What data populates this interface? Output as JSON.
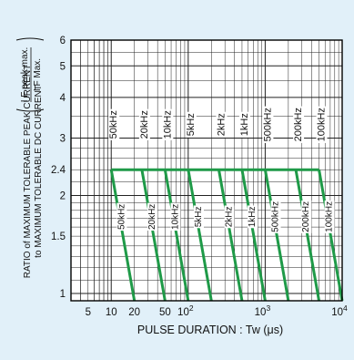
{
  "chart_data": {
    "type": "line",
    "xlabel": "PULSE  DURATION : Tw  (μs)",
    "ylabel_line1": "RATIO of MAXIMUM TOLERABLE PEAK CURRENT",
    "ylabel_line2": "to MAXIMUM TOLERABLE DC CURRENT",
    "ylabel_fraction": {
      "numerator": "I F peak max.",
      "denominator": "I F Max."
    },
    "x_scale": "log",
    "y_scale": "log",
    "xlim": [
      3,
      10000
    ],
    "ylim": [
      0.95,
      6
    ],
    "grid": true,
    "x_ticks": [
      {
        "value": 5,
        "label": "5"
      },
      {
        "value": 10,
        "label": "10"
      },
      {
        "value": 20,
        "label": "20"
      },
      {
        "value": 50,
        "label": "50"
      },
      {
        "value": 100,
        "label": "10",
        "exp": "2"
      },
      {
        "value": 1000,
        "label": "10",
        "exp": "3"
      },
      {
        "value": 10000,
        "label": "10",
        "exp": "4"
      }
    ],
    "y_ticks": [
      {
        "value": 1,
        "label": "1"
      },
      {
        "value": 1.5,
        "label": "1.5"
      },
      {
        "value": 2,
        "label": "2"
      },
      {
        "value": 2.4,
        "label": "2.4"
      },
      {
        "value": 3,
        "label": "3"
      },
      {
        "value": 4,
        "label": "4"
      },
      {
        "value": 5,
        "label": "5"
      },
      {
        "value": 6,
        "label": "6"
      }
    ],
    "plateau": {
      "y": 2.4,
      "x_start": 10,
      "x_end": 5000
    },
    "series": [
      {
        "name": "50kHz",
        "drop_start_x": 10,
        "drop_end_x": 20,
        "upper_label": "50kHz",
        "lower_label": "50kHz"
      },
      {
        "name": "20kHz",
        "drop_start_x": 25,
        "drop_end_x": 50,
        "upper_label": "20kHz",
        "lower_label": "20kHz"
      },
      {
        "name": "10kHz",
        "drop_start_x": 50,
        "drop_end_x": 100,
        "upper_label": "10kHz",
        "lower_label": "10kHz"
      },
      {
        "name": "5kHz",
        "drop_start_x": 100,
        "drop_end_x": 200,
        "upper_label": "5kHz",
        "lower_label": "5kHz"
      },
      {
        "name": "2kHz",
        "drop_start_x": 250,
        "drop_end_x": 500,
        "upper_label": "2kHz",
        "lower_label": "2kHz"
      },
      {
        "name": "1kHz",
        "drop_start_x": 500,
        "drop_end_x": 1000,
        "upper_label": "1kHz",
        "lower_label": "1kHz"
      },
      {
        "name": "500kHz",
        "drop_start_x": 1000,
        "drop_end_x": 2000,
        "upper_label": "500kHz",
        "lower_label": "500kHz"
      },
      {
        "name": "200kHz",
        "drop_start_x": 2500,
        "drop_end_x": 5000,
        "upper_label": "200kHz",
        "lower_label": "200kHz"
      },
      {
        "name": "100kHz",
        "drop_start_x": 5000,
        "drop_end_x": 10000,
        "upper_label": "100kHz",
        "lower_label": "100kHz"
      }
    ],
    "colors": {
      "line": "#1f9a48",
      "background": "#e1f0f9",
      "plot": "#ffffff",
      "grid": "#222222"
    }
  }
}
